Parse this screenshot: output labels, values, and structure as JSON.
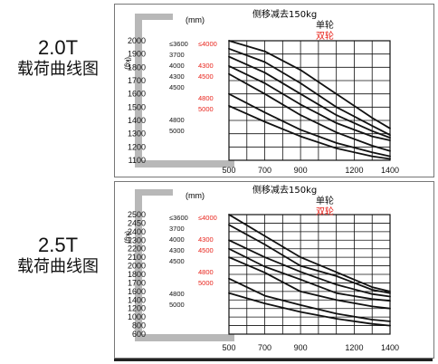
{
  "charts": [
    {
      "side_title": "2.0T",
      "side_subtitle": "载荷曲线图",
      "unit_mm": "(mm)",
      "unit_kg": "(kg)",
      "note": "侧移减去150kg",
      "legend_single": "单轮",
      "legend_double": "双轮",
      "single_color": "#111111",
      "double_color": "#e8231b"
    },
    {
      "side_title": "2.5T",
      "side_subtitle": "载荷曲线图",
      "unit_mm": "(mm)",
      "unit_kg": "(kg)",
      "note": "侧移减去150kg",
      "legend_single": "单轮",
      "legend_double": "双轮",
      "single_color": "#111111",
      "double_color": "#e8231b"
    }
  ],
  "chart_data": [
    {
      "type": "line",
      "title": "",
      "xlabel": "(mm)",
      "ylabel": "(kg)",
      "xlim": [
        500,
        1400
      ],
      "ylim": [
        1100,
        2000
      ],
      "xticks": [
        500,
        700,
        900,
        1200,
        1400
      ],
      "yticks": [
        1100,
        1200,
        1300,
        1400,
        1500,
        1600,
        1700,
        1800,
        1900,
        2000
      ],
      "mast_heights_single": [
        "≤3600",
        "3700",
        "4000",
        "4300",
        "4500",
        "4800",
        "5000"
      ],
      "mast_heights_double": [
        "≤4000",
        "4300",
        "4500",
        "4800",
        "5000"
      ],
      "series": [
        {
          "name": "≤3600",
          "x": [
            500,
            700,
            900,
            1100,
            1300,
            1400
          ],
          "y": [
            2000,
            1920,
            1780,
            1600,
            1420,
            1340
          ]
        },
        {
          "name": "3700",
          "x": [
            500,
            700,
            900,
            1100,
            1300,
            1400
          ],
          "y": [
            1940,
            1840,
            1680,
            1500,
            1360,
            1290
          ]
        },
        {
          "name": "4000",
          "x": [
            500,
            700,
            900,
            1100,
            1300,
            1400
          ],
          "y": [
            1880,
            1760,
            1600,
            1440,
            1320,
            1270
          ]
        },
        {
          "name": "4300",
          "x": [
            500,
            700,
            900,
            1100,
            1300,
            1400
          ],
          "y": [
            1810,
            1680,
            1520,
            1380,
            1280,
            1250
          ]
        },
        {
          "name": "4500",
          "x": [
            500,
            700,
            900,
            1100,
            1300,
            1400
          ],
          "y": [
            1750,
            1600,
            1440,
            1310,
            1210,
            1170
          ]
        },
        {
          "name": "4800",
          "x": [
            500,
            700,
            900,
            1100,
            1300,
            1400
          ],
          "y": [
            1600,
            1460,
            1330,
            1230,
            1160,
            1130
          ]
        },
        {
          "name": "5000",
          "x": [
            500,
            700,
            900,
            1100,
            1300,
            1400
          ],
          "y": [
            1510,
            1390,
            1280,
            1190,
            1130,
            1110
          ]
        }
      ]
    },
    {
      "type": "line",
      "title": "",
      "xlabel": "(mm)",
      "ylabel": "(kg)",
      "xlim": [
        500,
        1400
      ],
      "ylim": [
        600,
        2500
      ],
      "xticks": [
        500,
        700,
        900,
        1200,
        1400
      ],
      "yticks": [
        600,
        800,
        1000,
        1200,
        1400,
        1600,
        1700,
        1800,
        2000,
        2100,
        2200,
        2300,
        2400,
        2450,
        2500
      ],
      "mast_heights_single": [
        "≤3600",
        "3700",
        "4000",
        "4300",
        "4500",
        "4800",
        "5000"
      ],
      "mast_heights_double": [
        "≤4000",
        "4300",
        "4500",
        "4800",
        "5000"
      ],
      "series": [
        {
          "name": "≤3600",
          "x": [
            500,
            700,
            900,
            1100,
            1300,
            1400
          ],
          "y": [
            2500,
            2350,
            2100,
            1850,
            1650,
            1600
          ]
        },
        {
          "name": "3700",
          "x": [
            500,
            700,
            900,
            1100,
            1300,
            1400
          ],
          "y": [
            2440,
            2250,
            2000,
            1780,
            1620,
            1560
          ]
        },
        {
          "name": "4000",
          "x": [
            500,
            700,
            900,
            1100,
            1300,
            1400
          ],
          "y": [
            2300,
            2100,
            1860,
            1680,
            1540,
            1480
          ]
        },
        {
          "name": "4300",
          "x": [
            500,
            700,
            900,
            1100,
            1300,
            1400
          ],
          "y": [
            2200,
            1980,
            1740,
            1560,
            1420,
            1380
          ]
        },
        {
          "name": "4500",
          "x": [
            500,
            700,
            900,
            1100,
            1300,
            1400
          ],
          "y": [
            2100,
            1840,
            1600,
            1400,
            1250,
            1200
          ]
        },
        {
          "name": "4800",
          "x": [
            500,
            700,
            900,
            1100,
            1300,
            1400
          ],
          "y": [
            1750,
            1500,
            1280,
            1080,
            940,
            900
          ]
        },
        {
          "name": "5000",
          "x": [
            500,
            700,
            900,
            1100,
            1300,
            1400
          ],
          "y": [
            1560,
            1320,
            1120,
            960,
            840,
            800
          ]
        }
      ]
    }
  ]
}
